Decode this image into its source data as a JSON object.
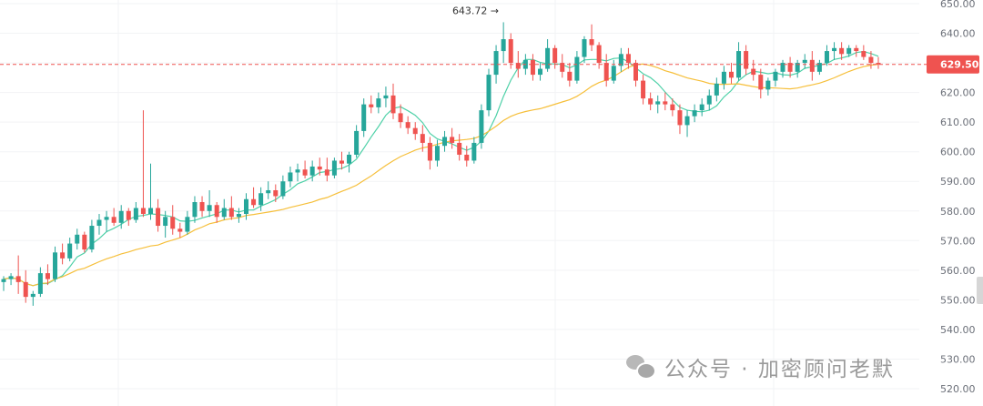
{
  "chart_data": {
    "type": "candlestick",
    "ylim": [
      520,
      650
    ],
    "y_ticks": [
      "650.00",
      "640.00",
      "630.00",
      "620.00",
      "610.00",
      "600.00",
      "590.00",
      "580.00",
      "570.00",
      "560.00",
      "550.00",
      "540.00",
      "530.00",
      "520.00"
    ],
    "current_price": "629.50",
    "high_annotation": "643.72",
    "colors": {
      "up": "#26a69a",
      "down": "#ef5350",
      "ma_fast": "#4fd1a8",
      "ma_slow": "#f6bf3a",
      "price_line": "#ef5350",
      "grid": "#f2f3f5",
      "axis_text": "#6b6f78"
    },
    "candles": [
      [
        556,
        558,
        553,
        557
      ],
      [
        557,
        559,
        555,
        558
      ],
      [
        558,
        565,
        552,
        556
      ],
      [
        556,
        560,
        549,
        551
      ],
      [
        551,
        553,
        548,
        552
      ],
      [
        552,
        561,
        551,
        559
      ],
      [
        559,
        562,
        555,
        557
      ],
      [
        557,
        568,
        556,
        566
      ],
      [
        566,
        569,
        562,
        564
      ],
      [
        564,
        571,
        563,
        569
      ],
      [
        569,
        574,
        567,
        572
      ],
      [
        572,
        573,
        566,
        567
      ],
      [
        567,
        577,
        566,
        575
      ],
      [
        575,
        579,
        572,
        577
      ],
      [
        577,
        580,
        573,
        578
      ],
      [
        578,
        581,
        575,
        576
      ],
      [
        576,
        582,
        574,
        580
      ],
      [
        580,
        581,
        575,
        577
      ],
      [
        577,
        583,
        576,
        581
      ],
      [
        581,
        614,
        578,
        579
      ],
      [
        579,
        596,
        577,
        581
      ],
      [
        581,
        584,
        573,
        575
      ],
      [
        575,
        580,
        571,
        578
      ],
      [
        578,
        582,
        572,
        574
      ],
      [
        574,
        576,
        571,
        573
      ],
      [
        573,
        580,
        572,
        578
      ],
      [
        578,
        585,
        576,
        583
      ],
      [
        583,
        585,
        578,
        580
      ],
      [
        580,
        587,
        578,
        582
      ],
      [
        582,
        583,
        576,
        578
      ],
      [
        578,
        584,
        577,
        581
      ],
      [
        581,
        585,
        577,
        578
      ],
      [
        578,
        581,
        576,
        579
      ],
      [
        579,
        586,
        577,
        584
      ],
      [
        584,
        588,
        581,
        582
      ],
      [
        582,
        588,
        580,
        586
      ],
      [
        586,
        590,
        584,
        587
      ],
      [
        587,
        589,
        583,
        585
      ],
      [
        585,
        592,
        584,
        590
      ],
      [
        590,
        595,
        588,
        593
      ],
      [
        593,
        596,
        590,
        594
      ],
      [
        594,
        597,
        591,
        592
      ],
      [
        592,
        597,
        590,
        595
      ],
      [
        595,
        598,
        592,
        594
      ],
      [
        594,
        598,
        590,
        592
      ],
      [
        592,
        598,
        591,
        597
      ],
      [
        597,
        600,
        594,
        596
      ],
      [
        596,
        600,
        593,
        599
      ],
      [
        599,
        609,
        598,
        607
      ],
      [
        607,
        618,
        605,
        616
      ],
      [
        616,
        619,
        613,
        615
      ],
      [
        615,
        620,
        613,
        618
      ],
      [
        618,
        622,
        615,
        619
      ],
      [
        619,
        623,
        611,
        613
      ],
      [
        613,
        616,
        608,
        610
      ],
      [
        610,
        612,
        606,
        608
      ],
      [
        608,
        610,
        604,
        606
      ],
      [
        606,
        609,
        600,
        603
      ],
      [
        603,
        605,
        594,
        597
      ],
      [
        597,
        604,
        595,
        602
      ],
      [
        602,
        607,
        600,
        605
      ],
      [
        605,
        608,
        601,
        603
      ],
      [
        603,
        606,
        597,
        599
      ],
      [
        599,
        602,
        595,
        597
      ],
      [
        597,
        605,
        596,
        603
      ],
      [
        603,
        616,
        601,
        614
      ],
      [
        614,
        628,
        612,
        626
      ],
      [
        626,
        636,
        623,
        634
      ],
      [
        634,
        643.72,
        630,
        638
      ],
      [
        638,
        640,
        628,
        630
      ],
      [
        630,
        634,
        625,
        628
      ],
      [
        628,
        633,
        626,
        631
      ],
      [
        631,
        633,
        624,
        626
      ],
      [
        626,
        630,
        624,
        628
      ],
      [
        628,
        638,
        627,
        635
      ],
      [
        635,
        636,
        628,
        630
      ],
      [
        630,
        633,
        625,
        627
      ],
      [
        627,
        630,
        622,
        624
      ],
      [
        624,
        634,
        623,
        632
      ],
      [
        632,
        639,
        630,
        638
      ],
      [
        638,
        643,
        634,
        636
      ],
      [
        636,
        637,
        628,
        630
      ],
      [
        630,
        633,
        622,
        624
      ],
      [
        624,
        631,
        623,
        629
      ],
      [
        629,
        635,
        627,
        633
      ],
      [
        633,
        635,
        628,
        630
      ],
      [
        630,
        631,
        622,
        624
      ],
      [
        624,
        626,
        616,
        618
      ],
      [
        618,
        620,
        614,
        616
      ],
      [
        616,
        619,
        613,
        617
      ],
      [
        617,
        620,
        614,
        616
      ],
      [
        616,
        618,
        612,
        614
      ],
      [
        614,
        616,
        606,
        609
      ],
      [
        609,
        614,
        605,
        612
      ],
      [
        612,
        616,
        610,
        614
      ],
      [
        614,
        618,
        612,
        616
      ],
      [
        616,
        621,
        614,
        619
      ],
      [
        619,
        625,
        617,
        623
      ],
      [
        623,
        629,
        621,
        627
      ],
      [
        627,
        630,
        623,
        625
      ],
      [
        625,
        637,
        624,
        634
      ],
      [
        634,
        636,
        626,
        628
      ],
      [
        628,
        631,
        624,
        626
      ],
      [
        626,
        628,
        618,
        621
      ],
      [
        621,
        625,
        619,
        624
      ],
      [
        624,
        628,
        622,
        627
      ],
      [
        627,
        631,
        625,
        630
      ],
      [
        630,
        632,
        625,
        627
      ],
      [
        627,
        631,
        625,
        630
      ],
      [
        630,
        633,
        628,
        631
      ],
      [
        631,
        634,
        624,
        627
      ],
      [
        627,
        631,
        626,
        630
      ],
      [
        630,
        636,
        629,
        634
      ],
      [
        634,
        637,
        631,
        635
      ],
      [
        635,
        637,
        631,
        633
      ],
      [
        633,
        636,
        632,
        635
      ],
      [
        635,
        636,
        632,
        634
      ],
      [
        634,
        636,
        631,
        632
      ],
      [
        632,
        634,
        628,
        630
      ],
      [
        630,
        632,
        628,
        629.5
      ]
    ]
  },
  "watermark": {
    "icon": "wechat-icon",
    "text": "公众号 · 加密顾问老默"
  }
}
